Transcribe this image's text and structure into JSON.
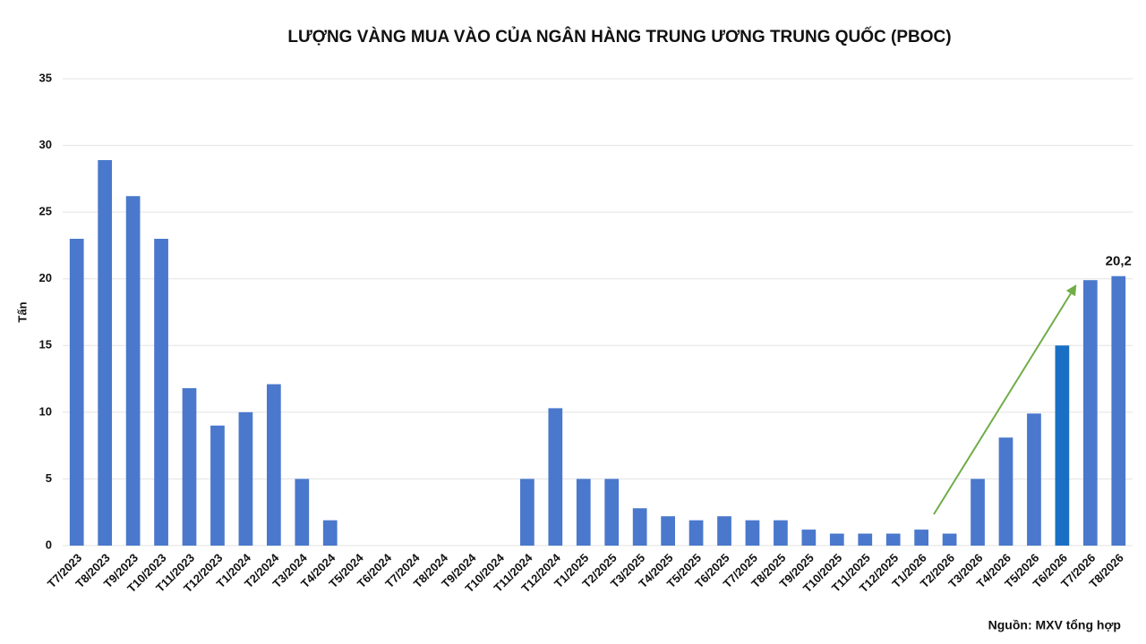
{
  "chart_data": {
    "type": "bar",
    "title": "LƯỢNG VÀNG MUA VÀO CỦA NGÂN HÀNG TRUNG ƯƠNG TRUNG QUỐC (PBOC)",
    "y_label": "Tấn",
    "source": "Nguồn: MXV tổng hợp",
    "categories": [
      "T7/2023",
      "T8/2023",
      "T9/2023",
      "T10/2023",
      "T11/2023",
      "T12/2023",
      "T1/2024",
      "T2/2024",
      "T3/2024",
      "T4/2024",
      "T5/2024",
      "T6/2024",
      "T7/2024",
      "T8/2024",
      "T9/2024",
      "T10/2024",
      "T11/2024",
      "T12/2024",
      "T1/2025",
      "T2/2025",
      "T3/2025",
      "T4/2025",
      "T5/2025",
      "T6/2025",
      "T7/2025",
      "T8/2025",
      "T9/2025",
      "T10/2025",
      "T11/2025",
      "T12/2025",
      "T1/2026",
      "T2/2026",
      "T3/2026",
      "T4/2026",
      "T5/2026",
      "T6/2026",
      "T7/2026",
      "T8/2026"
    ],
    "values": [
      23,
      28.9,
      26.2,
      23,
      11.8,
      9,
      10,
      12.1,
      5,
      1.9,
      0,
      0,
      0,
      0,
      0,
      0,
      5,
      10.3,
      5,
      5,
      2.8,
      2.2,
      1.9,
      2.2,
      1.9,
      1.9,
      1.2,
      0.9,
      0.9,
      0.9,
      1.2,
      0.9,
      5,
      8.1,
      9.9,
      15,
      19.9,
      20.2
    ],
    "value_labels": [
      null,
      null,
      null,
      null,
      null,
      null,
      null,
      null,
      null,
      null,
      null,
      null,
      null,
      null,
      null,
      null,
      null,
      null,
      null,
      null,
      null,
      null,
      null,
      null,
      null,
      null,
      null,
      null,
      null,
      null,
      null,
      null,
      null,
      null,
      null,
      null,
      null,
      "20,2"
    ],
    "color": "#4a78cc",
    "highlight_color": "#1a6fc4",
    "highlight_index": 35,
    "ylim": [
      0,
      35
    ],
    "yticks": [
      0,
      5,
      10,
      15,
      20,
      25,
      30,
      35
    ],
    "grid": true
  }
}
